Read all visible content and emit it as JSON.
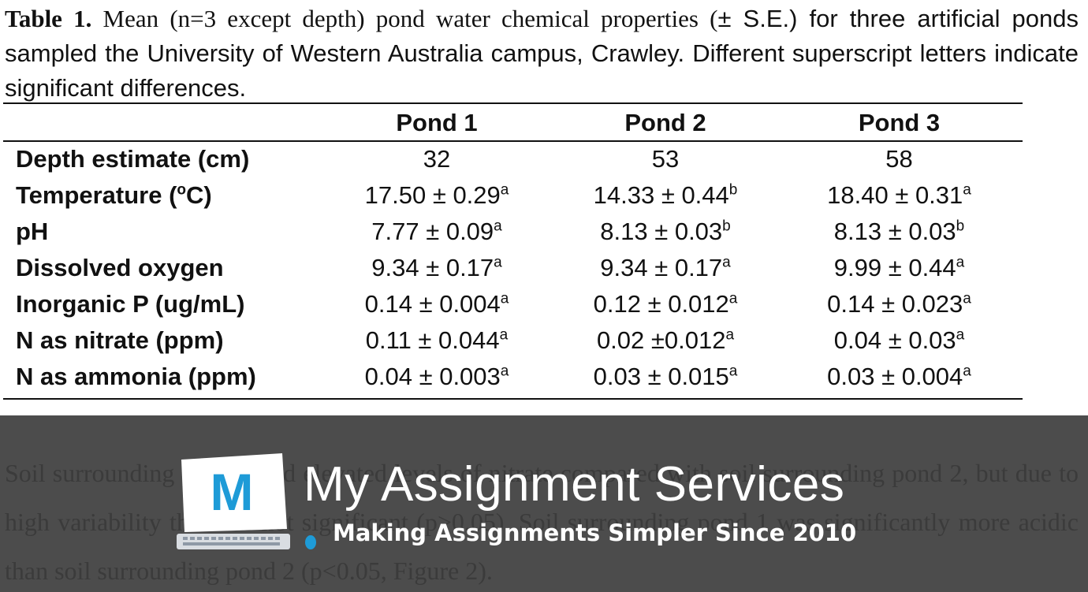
{
  "caption": {
    "label": "Table 1.",
    "serif_text": " Mean (n=3 except depth) pond water chemical properties (",
    "sans_text": "± S.E.) for three artificial ponds sampled the University of Western Australia campus, Crawley. Different superscript letters indicate significant differences."
  },
  "table": {
    "headers": [
      "",
      "Pond 1",
      "Pond 2",
      "Pond 3"
    ],
    "rows": [
      {
        "label": "Depth estimate (cm)",
        "cells": [
          {
            "v": "32",
            "s": ""
          },
          {
            "v": "53",
            "s": ""
          },
          {
            "v": "58",
            "s": ""
          }
        ]
      },
      {
        "label_pre": "Temperature (",
        "label_sup": "o",
        "label_post": "C)",
        "cells": [
          {
            "v": "17.50 ± 0.29",
            "s": "a"
          },
          {
            "v": "14.33 ± 0.44",
            "s": "b"
          },
          {
            "v": "18.40 ± 0.31",
            "s": "a"
          }
        ]
      },
      {
        "label": "pH",
        "cells": [
          {
            "v": "7.77 ± 0.09",
            "s": "a"
          },
          {
            "v": "8.13 ± 0.03",
            "s": "b"
          },
          {
            "v": "8.13 ± 0.03",
            "s": "b"
          }
        ]
      },
      {
        "label": "Dissolved oxygen",
        "cells": [
          {
            "v": "9.34 ± 0.17",
            "s": "a"
          },
          {
            "v": "9.34 ± 0.17",
            "s": "a"
          },
          {
            "v": "9.99 ± 0.44",
            "s": "a"
          }
        ]
      },
      {
        "label": "Inorganic P (ug/mL)",
        "cells": [
          {
            "v": "0.14 ± 0.004",
            "s": "a"
          },
          {
            "v": "0.12 ± 0.012",
            "s": "a"
          },
          {
            "v": "0.14 ± 0.023",
            "s": "a"
          }
        ]
      },
      {
        "label": "N as nitrate (ppm)",
        "cells": [
          {
            "v": "0.11 ± 0.044",
            "s": "a"
          },
          {
            "v": "0.02 ±0.012",
            "s": "a"
          },
          {
            "v": "0.04 ± 0.03",
            "s": "a"
          }
        ]
      },
      {
        "label": "N as ammonia (ppm)",
        "cells": [
          {
            "v": "0.04 ± 0.003",
            "s": "a"
          },
          {
            "v": "0.03 ± 0.015",
            "s": "a"
          },
          {
            "v": "0.03 ± 0.004",
            "s": "a"
          }
        ]
      }
    ]
  },
  "background_text": "Soil surrounding pond 1 had elevated levels of nitrate compared with soil surrounding pond 2, but due to high variability this was not significant (p>0.05). Soil surrounding pond 1 was significantly more acidic than soil surrounding pond 2 (p<0.05, Figure 2).",
  "watermark": {
    "logo_letter": "M",
    "brand": "My Assignment Services",
    "tagline": "Making Assignments Simpler Since 2010",
    "accent_color": "#1e9bd7",
    "banner_color": "#4c4c4c",
    "icon": "laptop-logo-icon"
  }
}
